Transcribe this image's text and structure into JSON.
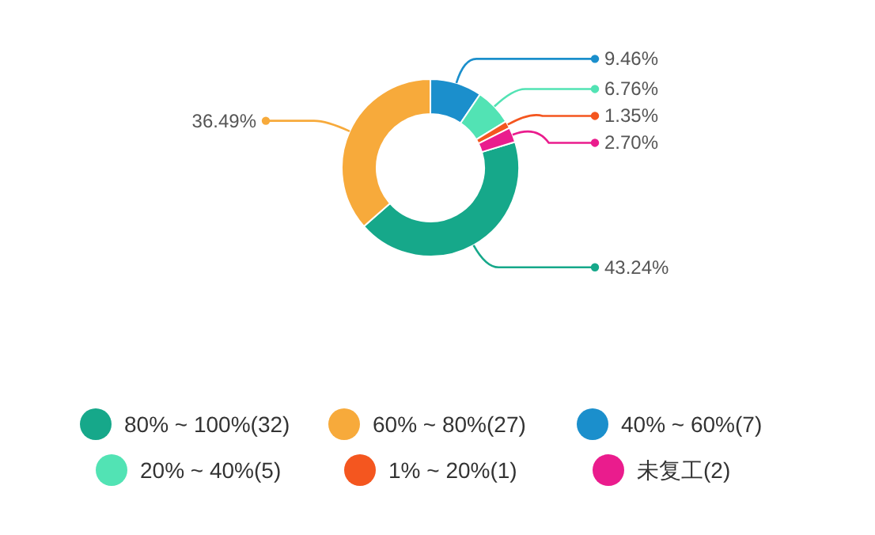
{
  "chart_data": {
    "type": "donut",
    "categories": [
      "80% ~ 100%(32)",
      "60% ~ 80%(27)",
      "40% ~ 60%(7)",
      "20% ~ 40%(5)",
      "1% ~ 20%(1)",
      "未复工(2)"
    ],
    "values": [
      43.24,
      36.49,
      9.46,
      6.76,
      1.35,
      2.7
    ],
    "value_labels": [
      "43.24%",
      "36.49%",
      "9.46%",
      "6.76%",
      "1.35%",
      "2.70%"
    ],
    "colors": [
      "#16a88a",
      "#f7aa3b",
      "#1b8fcc",
      "#52e3b4",
      "#f4561f",
      "#ea1c8d"
    ],
    "legend": "bottom"
  }
}
